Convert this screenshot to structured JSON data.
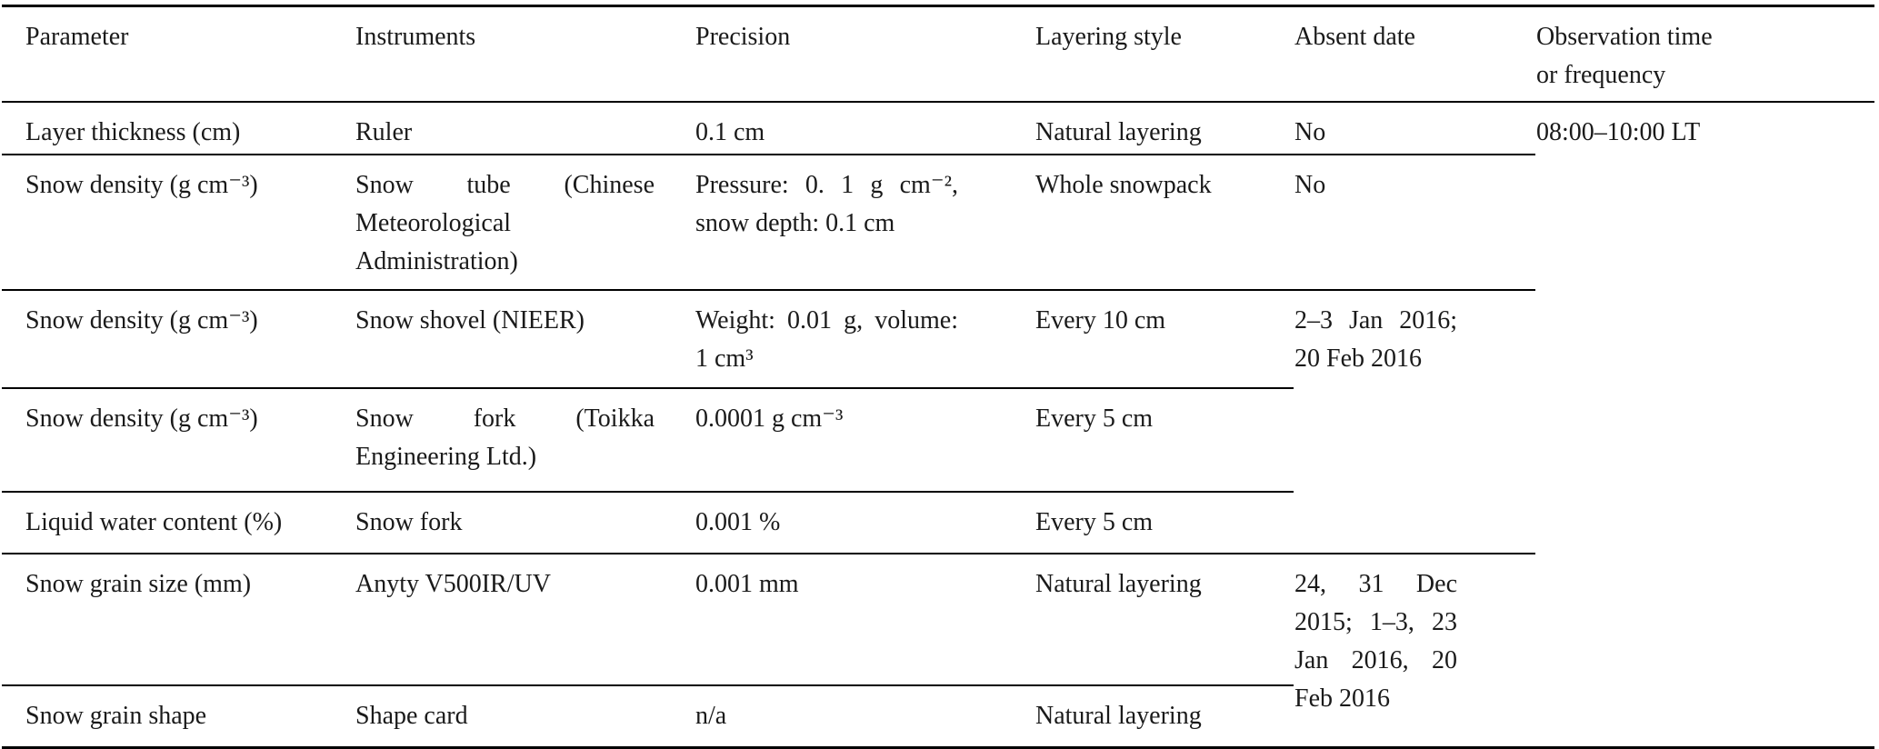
{
  "document": {
    "kind": "paper-table",
    "background_color": "#ffffff",
    "text_color": "#1a1a1a",
    "rule_color": "#000000"
  },
  "table": {
    "columns": [
      {
        "key": "parameter",
        "label": "Parameter"
      },
      {
        "key": "instruments",
        "label": "Instruments"
      },
      {
        "key": "precision",
        "label": "Precision"
      },
      {
        "key": "layering_style",
        "label": "Layering style"
      },
      {
        "key": "absent_date",
        "label": "Absent date"
      },
      {
        "key": "observation_time",
        "label": "Observation time or frequency"
      }
    ],
    "rows": [
      {
        "parameter": "Layer thickness (cm)",
        "instruments": "Ruler",
        "precision": "0.1 cm",
        "layering_style": "Natural layering",
        "absent_date": "No",
        "observation_time": "08:00–10:00 LT"
      },
      {
        "parameter": "Snow density (g cm⁻³)",
        "instruments": "Snow tube (Chinese Meteorological Administration)",
        "precision": "Pressure: 0. 1 g cm⁻², snow depth: 0.1 cm",
        "layering_style": "Whole snowpack",
        "absent_date": "No"
      },
      {
        "parameter": "Snow density (g cm⁻³)",
        "instruments": "Snow shovel (NIEER)",
        "precision": "Weight: 0.01 g, volume: 1 cm³",
        "layering_style": "Every 10 cm",
        "absent_date": "2–3 Jan 2016; 20 Feb 2016"
      },
      {
        "parameter": "Snow density (g cm⁻³)",
        "instruments": "Snow fork (Toikka Engineering Ltd.)",
        "precision": "0.0001 g cm⁻³",
        "layering_style": "Every 5 cm"
      },
      {
        "parameter": "Liquid water content (%)",
        "instruments": "Snow fork",
        "precision": "0.001 %",
        "layering_style": "Every 5 cm"
      },
      {
        "parameter": "Snow grain size (mm)",
        "instruments": "Anyty V500IR/UV",
        "precision": "0.001 mm",
        "layering_style": "Natural layering",
        "absent_date": "24, 31 Dec 2015; 1–3, 23 Jan 2016, 20 Feb 2016"
      },
      {
        "parameter": "Snow grain shape",
        "instruments": "Shape card",
        "precision": "n/a",
        "layering_style": "Natural layering"
      }
    ]
  }
}
